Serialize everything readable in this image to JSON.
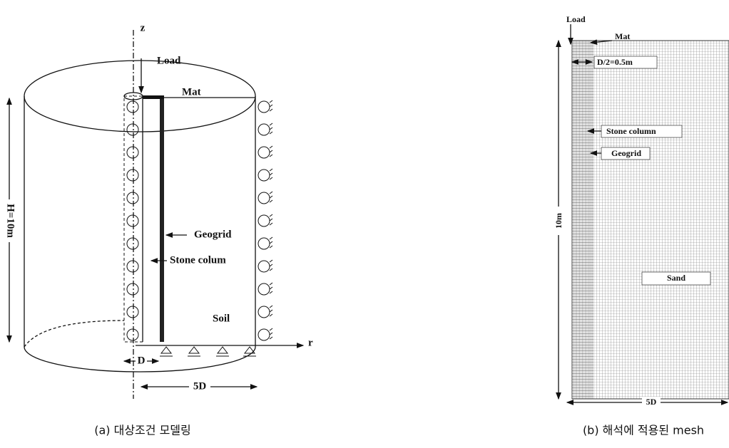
{
  "panel_a": {
    "axis_z": "z",
    "load": "Load",
    "mat": "Mat",
    "height": "H=10m",
    "geogrid": "Geogrid",
    "stone_column": "Stone colum",
    "soil": "Soil",
    "axis_r": "r",
    "diameter": "D",
    "width": "5D",
    "caption": "(a) 대상조건 모델링"
  },
  "panel_b": {
    "load": "Load",
    "mat": "Mat",
    "half_diameter": "D/2=0.5m",
    "stone_column": "Stone column",
    "geogrid": "Geogrid",
    "height": "10m",
    "sand": "Sand",
    "width": "5D",
    "caption": "(b) 해석에 적용된 mesh"
  }
}
